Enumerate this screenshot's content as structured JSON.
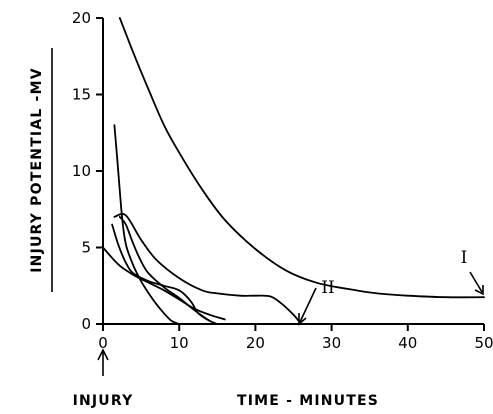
{
  "chart_data": {
    "type": "line",
    "xlabel": "TIME - MINUTES",
    "ylabel": "INJURY POTENTIAL -MV",
    "xlim": [
      0,
      50
    ],
    "ylim": [
      0,
      20
    ],
    "xticks": [
      0,
      10,
      20,
      30,
      40,
      50
    ],
    "yticks": [
      0,
      5,
      10,
      15,
      20
    ],
    "grid": false,
    "event_label": "INJURY",
    "event_x": 0,
    "series": [
      {
        "name": "I",
        "x": [
          2.2,
          4,
          6,
          8,
          10,
          13,
          16,
          20,
          24,
          28,
          32,
          36,
          40,
          45,
          50
        ],
        "y": [
          20.0,
          17.7,
          15.3,
          13.0,
          11.2,
          8.8,
          6.8,
          4.9,
          3.5,
          2.7,
          2.3,
          2.0,
          1.85,
          1.75,
          1.75
        ]
      },
      {
        "name": "II",
        "x": [
          1.5,
          3,
          5,
          7,
          10,
          13,
          15,
          18,
          20,
          22,
          23.5,
          25,
          26
        ],
        "y": [
          7.0,
          7.1,
          5.5,
          4.2,
          3.0,
          2.2,
          2.0,
          1.85,
          1.85,
          1.8,
          1.3,
          0.6,
          0.0
        ]
      },
      {
        "x": [
          0,
          2,
          4,
          6,
          8,
          10,
          12,
          14,
          16
        ],
        "y": [
          5.0,
          3.9,
          3.2,
          2.7,
          2.2,
          1.6,
          1.0,
          0.6,
          0.3
        ]
      },
      {
        "x": [
          1.5,
          2,
          2.5,
          3,
          4,
          5,
          6,
          7,
          8,
          9,
          10
        ],
        "y": [
          13.0,
          10.0,
          7.0,
          5.2,
          3.8,
          2.8,
          2.0,
          1.3,
          0.7,
          0.2,
          0.0
        ]
      },
      {
        "x": [
          2.2,
          3,
          4,
          5,
          6,
          8,
          10,
          12,
          14
        ],
        "y": [
          7.0,
          6.5,
          5.2,
          4.1,
          3.3,
          2.4,
          1.7,
          0.9,
          0.2
        ]
      },
      {
        "x": [
          1.2,
          2,
          3,
          4,
          6,
          8,
          10,
          11.5,
          12.5,
          14,
          15
        ],
        "y": [
          6.5,
          5.2,
          4.0,
          3.3,
          2.8,
          2.5,
          2.2,
          1.5,
          0.7,
          0.2,
          0.0
        ]
      }
    ]
  }
}
